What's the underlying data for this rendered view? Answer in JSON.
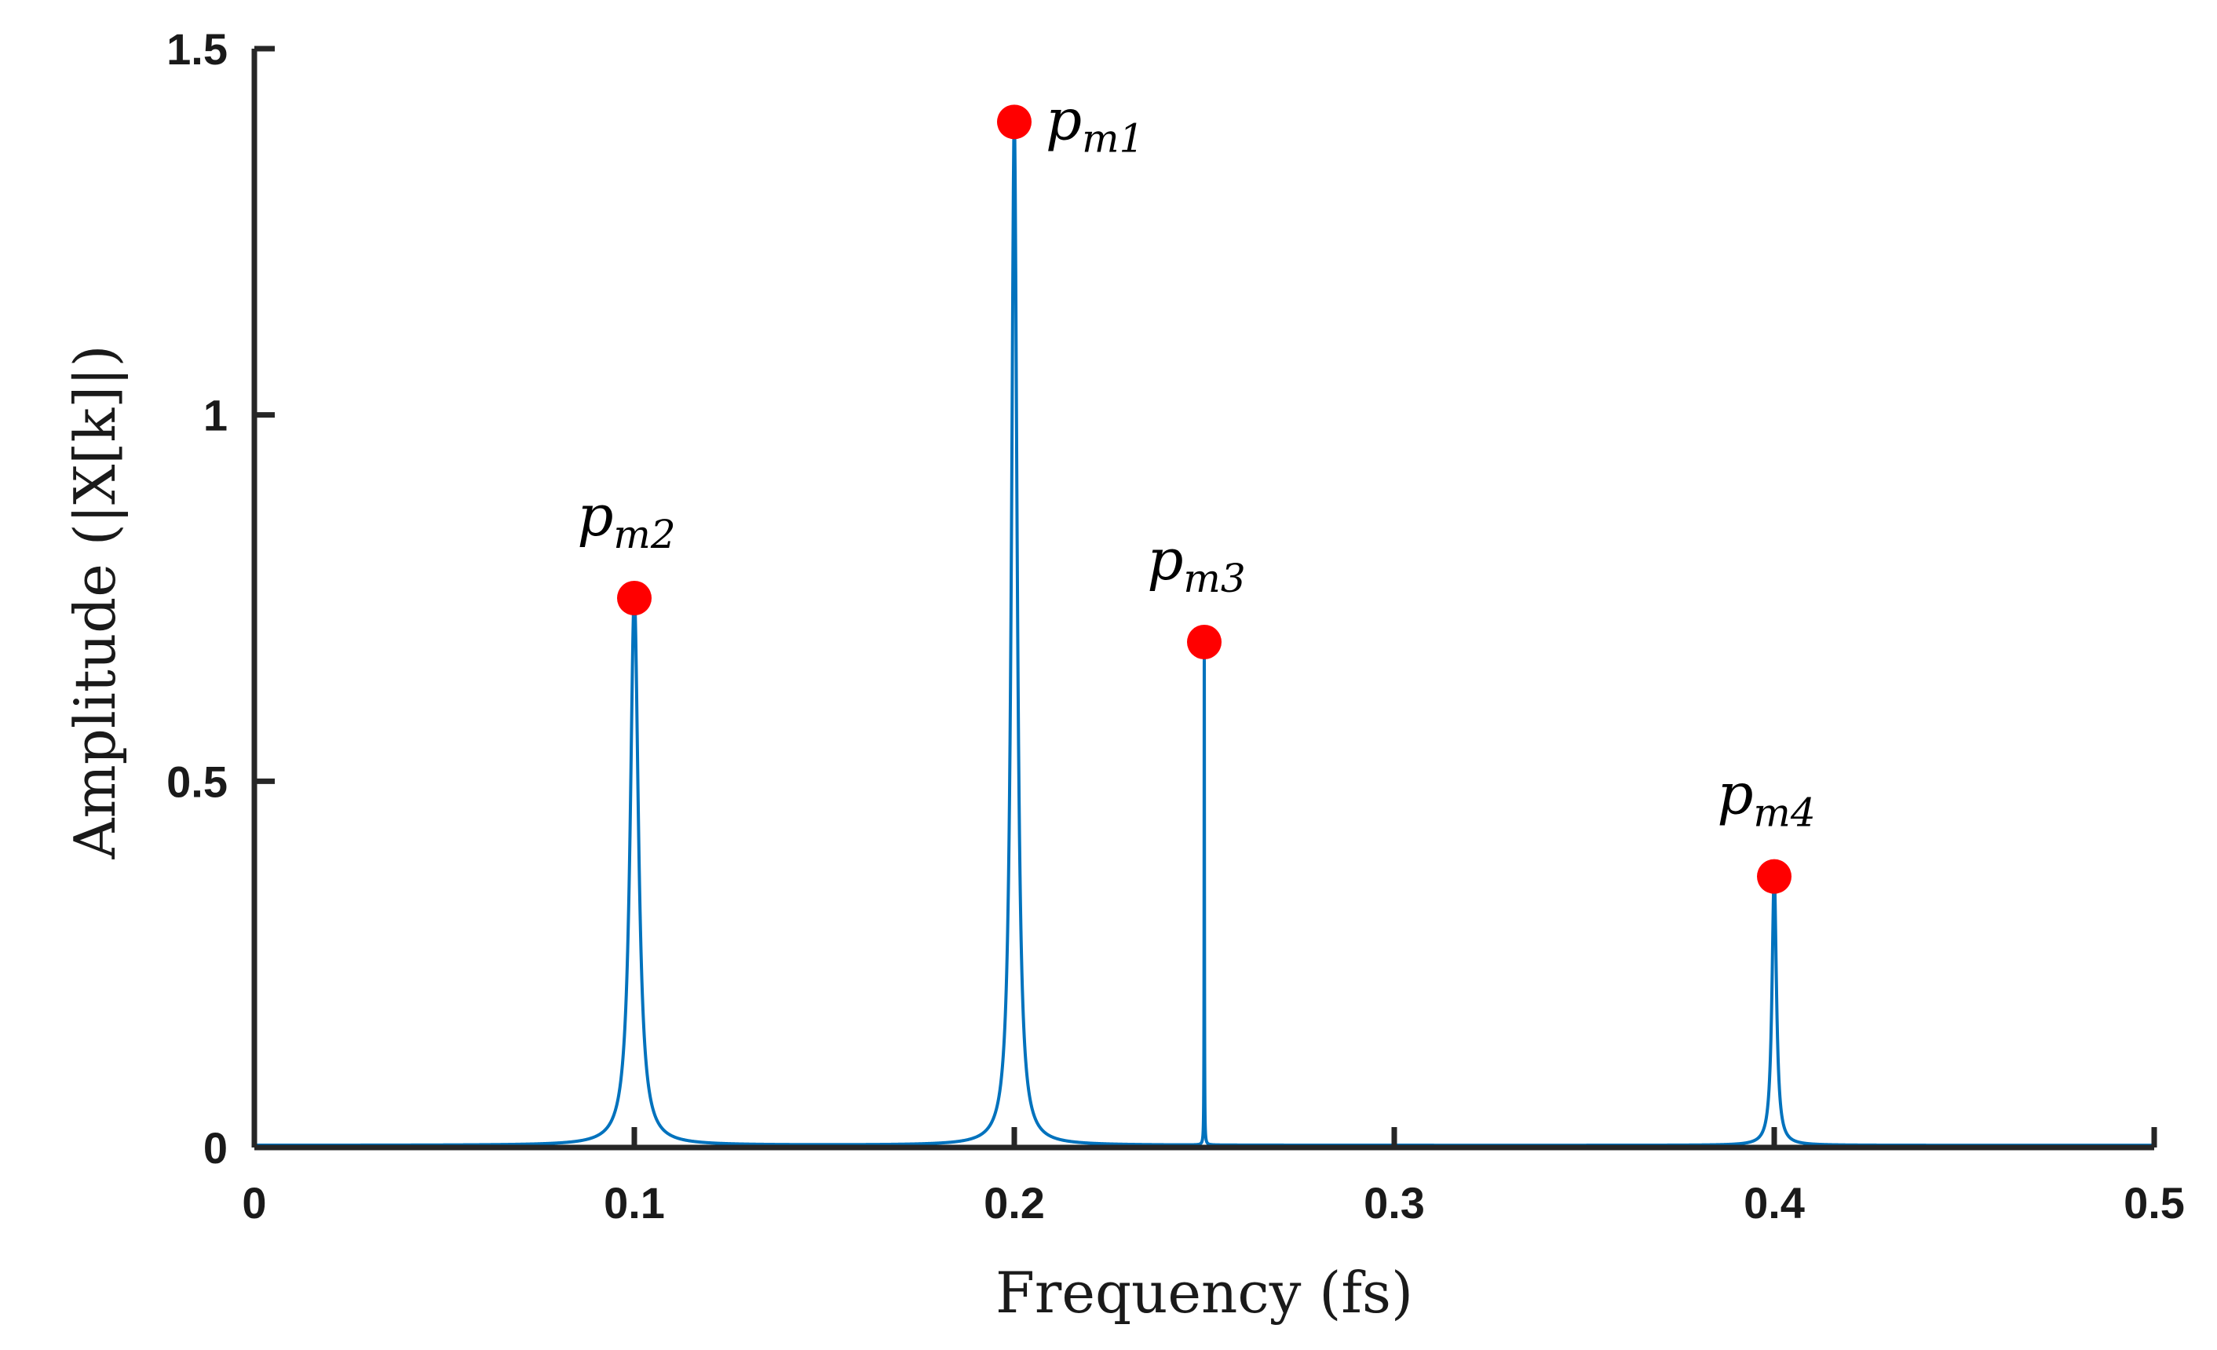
{
  "chart_data": {
    "type": "line",
    "title": "",
    "xlabel": "Frequency (fs)",
    "ylabel": "Amplitude (|X[k]|)",
    "xlim": [
      0,
      0.5
    ],
    "ylim": [
      0,
      1.5
    ],
    "xticks": [
      0,
      0.1,
      0.2,
      0.3,
      0.4,
      0.5
    ],
    "xtick_labels": [
      "0",
      "0.1",
      "0.2",
      "0.3",
      "0.4",
      "0.5"
    ],
    "yticks": [
      0,
      0.5,
      1,
      1.5
    ],
    "ytick_labels": [
      "0",
      "0.5",
      "1",
      "1.5"
    ],
    "grid": false,
    "series": [
      {
        "name": "|X[k]|",
        "color": "#0072BD",
        "baseline": 0.003,
        "peaks": [
          {
            "freq": 0.1,
            "amplitude": 0.75,
            "width": 0.0013
          },
          {
            "freq": 0.2,
            "amplitude": 1.4,
            "width": 0.0009
          },
          {
            "freq": 0.25,
            "amplitude": 0.69,
            "width": 5e-05
          },
          {
            "freq": 0.4,
            "amplitude": 0.37,
            "width": 0.0007
          }
        ]
      }
    ],
    "markers": {
      "color": "#FF0000",
      "points": [
        {
          "x": 0.2,
          "y": 1.4,
          "label": "p",
          "sub": "m1",
          "label_pos": "right"
        },
        {
          "x": 0.1,
          "y": 0.75,
          "label": "p",
          "sub": "m2",
          "label_pos": "above"
        },
        {
          "x": 0.25,
          "y": 0.69,
          "label": "p",
          "sub": "m3",
          "label_pos": "above"
        },
        {
          "x": 0.4,
          "y": 0.37,
          "label": "p",
          "sub": "m4",
          "label_pos": "above"
        }
      ]
    }
  }
}
